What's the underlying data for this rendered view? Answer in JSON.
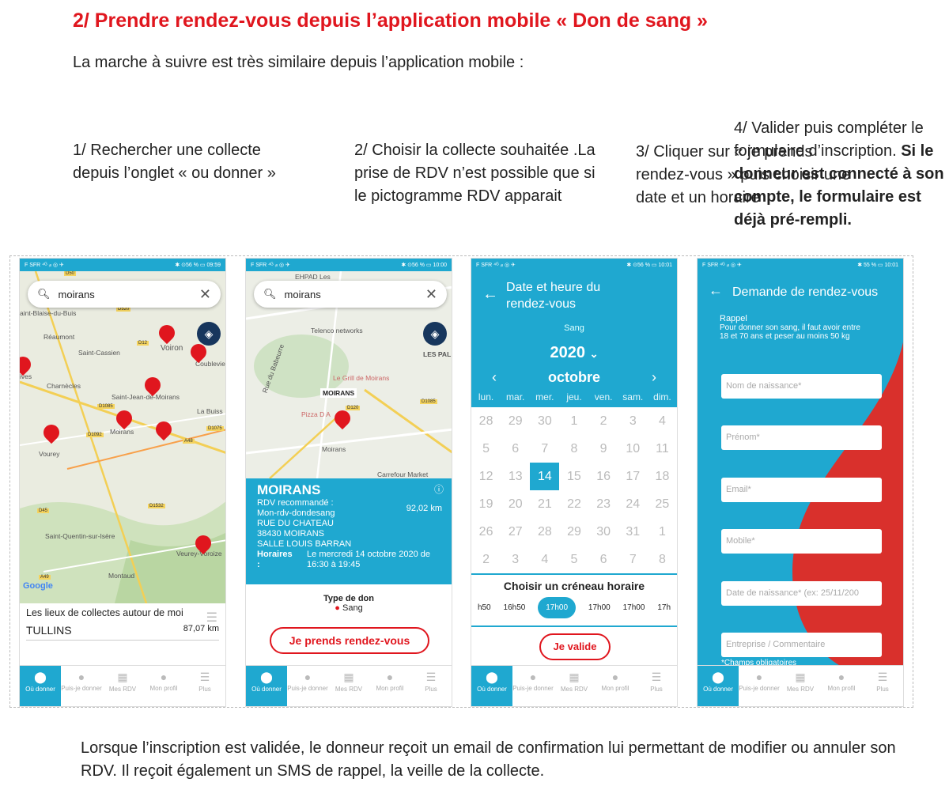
{
  "heading": "2/ Prendre rendez-vous depuis l’application mobile « Don de sang »",
  "intro": "La marche à suivre est très similaire depuis l’application mobile :",
  "steps": {
    "s1": "1/ Rechercher une collecte depuis l’onglet « ou donner »",
    "s2": "2/ Choisir la collecte souhaitée .La prise de RDV n’est possible que si le pictogramme RDV apparait",
    "s3": "3/ Cliquer sur « je prends rendez-vous » puis choisir une date et un horaire",
    "s4_plain": "4/ Valider puis compléter le formulaire d’inscription. ",
    "s4_bold": "Si le donneur est connecté à son compte, le formulaire est déjà pré-rempli."
  },
  "footer": "Lorsque l’inscription est validée, le donneur reçoit un email de confirmation lui permettant de modifier ou annuler son RDV. Il reçoit également un SMS de rappel, la veille de la collecte.",
  "nav": {
    "ou": "Où donner",
    "puis": "Puis-je donner",
    "rdv": "Mes RDV",
    "profil": "Mon profil",
    "plus": "Plus"
  },
  "phone1": {
    "status_left": "F SFR ⁴ᴳ ᵢₗₗ ◎ ✈",
    "status_right": "✱ ⊙56 % ▭ 09:59",
    "search": "moirans",
    "list_title": "Les lieux de collectes autour de moi",
    "list_item": "TULLINS",
    "list_dist": "87,07 km",
    "map_labels": [
      "aint-Blaise-du-Buis",
      "Réaumont",
      "Saint-Cassien",
      "Voiron",
      "Coublevie",
      "ives",
      "Charnècles",
      "Saint-Jean-de-Moirans",
      "La Buiss",
      "Moirans",
      "Vourey",
      "Saint-Quentin-sur-Isère",
      "Veurey-Voroize",
      "Montaud",
      "Google"
    ],
    "roads": [
      "D50",
      "D520",
      "D12",
      "D1085",
      "D1092",
      "D1075",
      "A48",
      "D45",
      "D1532",
      "A49"
    ]
  },
  "phone2": {
    "status_left": "F SFR ⁴ᴳ ᵢₗₗ ◎ ✈",
    "status_right": "✱ ⊙56 % ▭ 10:00",
    "search": "moirans",
    "map_labels": [
      "EHPAD Les",
      "Telenco networks",
      "LES PAL",
      "Le Grill de Moirans",
      "MOIRANS",
      "Pizza D A",
      "Moirans",
      "Carrefour Market",
      "Rue du Babeurre",
      "D1085",
      "D120"
    ],
    "title": "MOIRANS",
    "rdv_label": "RDV recommandé :",
    "rdv_value": "Mon-rdv-dondesang",
    "dist": "92,02 km",
    "addr1": "RUE DU CHATEAU",
    "addr2": "38430 MOIRANS",
    "addr3": "SALLE LOUIS BARRAN",
    "hours_label": "Horaires :",
    "hours_value": "Le mercredi 14 octobre 2020 de 16:30 à 19:45",
    "don_label": "Type de don",
    "don_value": "Sang",
    "button": "Je prends rendez-vous"
  },
  "phone3": {
    "status_left": "F SFR ⁴ᴳ ᵢₗₗ ◎ ✈",
    "status_right": "✱ ⊙56 % ▭ 10:01",
    "title": "Date et heure du rendez-vous",
    "sang": "Sang",
    "year": "2020",
    "month": "octobre",
    "weekdays": [
      "lun.",
      "mar.",
      "mer.",
      "jeu.",
      "ven.",
      "sam.",
      "dim."
    ],
    "weeks": [
      [
        "28",
        "29",
        "30",
        "1",
        "2",
        "3",
        "4"
      ],
      [
        "5",
        "6",
        "7",
        "8",
        "9",
        "10",
        "11"
      ],
      [
        "12",
        "13",
        "14",
        "15",
        "16",
        "17",
        "18"
      ],
      [
        "19",
        "20",
        "21",
        "22",
        "23",
        "24",
        "25"
      ],
      [
        "26",
        "27",
        "28",
        "29",
        "30",
        "31",
        "1"
      ],
      [
        "2",
        "3",
        "4",
        "5",
        "6",
        "7",
        "8"
      ]
    ],
    "slot_title": "Choisir un créneau horaire",
    "slots": [
      "h50",
      "16h50",
      "17h00",
      "17h00",
      "17h00",
      "17h"
    ],
    "button": "Je valide"
  },
  "phone4": {
    "status_left": "F SFR ⁴ᴳ ᵢₗₗ ◎ ✈",
    "status_right": "✱ 55 % ▭ 10:01",
    "title": "Demande de rendez-vous",
    "rappel": "Rappel",
    "rappel_text": "Pour donner son sang, il faut avoir entre 18 et 70 ans et peser au moins 50 kg",
    "fields": [
      "Nom de naissance*",
      "Prénom*",
      "Email*",
      "Mobile*",
      "Date de naissance* (ex: 25/11/200",
      "Entreprise / Commentaire"
    ],
    "required": "*Champs obligatoires"
  }
}
